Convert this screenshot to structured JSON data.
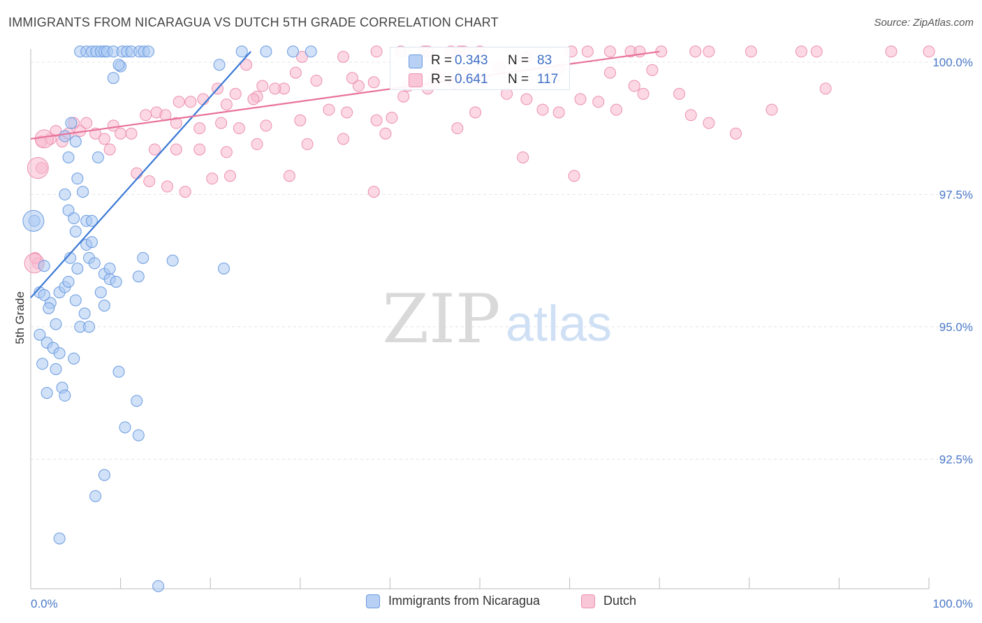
{
  "title": "IMMIGRANTS FROM NICARAGUA VS DUTCH 5TH GRADE CORRELATION CHART",
  "source": "Source: ZipAtlas.com",
  "watermark": {
    "zip": "ZIP",
    "atlas": "atlas"
  },
  "colors": {
    "blue_fill": "#a9c8f3",
    "blue_stroke": "#6b9be0",
    "blue_line": "#3a78d4",
    "pink_fill": "#f7b8cd",
    "pink_stroke": "#ec8fb0",
    "pink_line": "#e8729a",
    "grid": "#e3e3e3",
    "tick_text": "#4a78c8"
  },
  "legend_stats": [
    {
      "r_label": "R = ",
      "r_value": "0.343",
      "n_label": "N = ",
      "n_value": "83",
      "series": "blue"
    },
    {
      "r_label": "R = ",
      "r_value": "0.641",
      "n_label": "N = ",
      "n_value": "117",
      "series": "pink"
    }
  ],
  "legend_bottom": [
    {
      "label": "Immigrants from Nicaragua",
      "series": "blue"
    },
    {
      "label": "Dutch",
      "series": "pink"
    }
  ],
  "chart_data": {
    "type": "scatter",
    "title": "IMMIGRANTS FROM NICARAGUA VS DUTCH 5TH GRADE CORRELATION CHART",
    "xlabel": "",
    "ylabel": "5th Grade",
    "xlim": [
      0,
      100
    ],
    "ylim": [
      90.05,
      100.25
    ],
    "x_tick_labels": [
      {
        "value": 0,
        "label": "0.0%"
      },
      {
        "value": 100,
        "label": "100.0%"
      }
    ],
    "y_ticks": [
      {
        "value": 92.5,
        "label": "92.5%"
      },
      {
        "value": 95.0,
        "label": "95.0%"
      },
      {
        "value": 97.5,
        "label": "97.5%"
      },
      {
        "value": 100.0,
        "label": "100.0%"
      }
    ],
    "series": [
      {
        "name": "Immigrants from Nicaragua",
        "color": "blue",
        "R": 0.343,
        "N": 83,
        "trend": {
          "x0": 0.0,
          "y0": 95.55,
          "x1": 24.5,
          "y1": 100.2
        },
        "points": [
          [
            5.5,
            100.2
          ],
          [
            6.2,
            100.2
          ],
          [
            6.8,
            100.2
          ],
          [
            7.3,
            100.2
          ],
          [
            7.8,
            100.2
          ],
          [
            8.2,
            100.2
          ],
          [
            8.5,
            100.2
          ],
          [
            9.2,
            100.2
          ],
          [
            10.2,
            100.2
          ],
          [
            10.7,
            100.2
          ],
          [
            11.2,
            100.2
          ],
          [
            12.1,
            100.2
          ],
          [
            12.6,
            100.2
          ],
          [
            13.1,
            100.2
          ],
          [
            23.5,
            100.2
          ],
          [
            26.2,
            100.2
          ],
          [
            29.2,
            100.2
          ],
          [
            31.2,
            100.2
          ],
          [
            10.0,
            99.92
          ],
          [
            9.8,
            99.95
          ],
          [
            21.0,
            99.95
          ],
          [
            9.2,
            99.7
          ],
          [
            4.5,
            98.85
          ],
          [
            5.0,
            98.5
          ],
          [
            3.8,
            98.6
          ],
          [
            4.2,
            98.2
          ],
          [
            7.5,
            98.2
          ],
          [
            5.2,
            97.8
          ],
          [
            5.8,
            97.55
          ],
          [
            3.8,
            97.5
          ],
          [
            4.2,
            97.2
          ],
          [
            4.8,
            97.05
          ],
          [
            6.2,
            97.0
          ],
          [
            6.8,
            97.0
          ],
          [
            5.0,
            96.8
          ],
          [
            6.2,
            96.55
          ],
          [
            6.8,
            96.6
          ],
          [
            0.4,
            97.0
          ],
          [
            4.4,
            96.3
          ],
          [
            5.2,
            96.1
          ],
          [
            6.5,
            96.3
          ],
          [
            7.1,
            96.2
          ],
          [
            8.2,
            96.0
          ],
          [
            8.8,
            95.9
          ],
          [
            9.5,
            95.85
          ],
          [
            12.5,
            96.3
          ],
          [
            15.8,
            96.25
          ],
          [
            21.5,
            96.1
          ],
          [
            12.0,
            95.95
          ],
          [
            1.0,
            95.65
          ],
          [
            2.2,
            95.45
          ],
          [
            3.2,
            95.65
          ],
          [
            3.8,
            95.75
          ],
          [
            4.2,
            95.85
          ],
          [
            5.0,
            95.5
          ],
          [
            6.0,
            95.25
          ],
          [
            5.5,
            95.0
          ],
          [
            6.5,
            95.0
          ],
          [
            7.8,
            95.65
          ],
          [
            8.2,
            95.4
          ],
          [
            1.5,
            95.6
          ],
          [
            2.0,
            95.35
          ],
          [
            2.8,
            95.05
          ],
          [
            1.0,
            94.85
          ],
          [
            1.8,
            94.7
          ],
          [
            2.5,
            94.6
          ],
          [
            3.2,
            94.5
          ],
          [
            4.8,
            94.4
          ],
          [
            1.3,
            94.3
          ],
          [
            2.8,
            94.2
          ],
          [
            9.8,
            94.15
          ],
          [
            1.8,
            93.75
          ],
          [
            3.5,
            93.85
          ],
          [
            3.8,
            93.7
          ],
          [
            11.8,
            93.6
          ],
          [
            10.5,
            93.1
          ],
          [
            12.0,
            92.95
          ],
          [
            8.2,
            92.2
          ],
          [
            3.2,
            91.0
          ],
          [
            14.2,
            90.1
          ],
          [
            7.2,
            91.8
          ],
          [
            1.5,
            96.15
          ],
          [
            8.8,
            96.1
          ]
        ]
      },
      {
        "name": "Dutch",
        "color": "pink",
        "R": 0.641,
        "N": 117,
        "trend": {
          "x0": 0.0,
          "y0": 98.55,
          "x1": 70.0,
          "y1": 100.2
        },
        "points": [
          [
            24.0,
            99.95
          ],
          [
            30.2,
            100.1
          ],
          [
            34.8,
            100.1
          ],
          [
            41.2,
            100.2
          ],
          [
            43.8,
            100.2
          ],
          [
            46.8,
            100.2
          ],
          [
            48.2,
            100.2
          ],
          [
            50.0,
            100.2
          ],
          [
            55.2,
            100.1
          ],
          [
            60.2,
            100.2
          ],
          [
            64.5,
            100.2
          ],
          [
            66.8,
            100.2
          ],
          [
            67.8,
            100.2
          ],
          [
            70.2,
            100.2
          ],
          [
            74.0,
            100.2
          ],
          [
            80.2,
            100.2
          ],
          [
            85.8,
            100.2
          ],
          [
            87.5,
            100.2
          ],
          [
            95.8,
            100.2
          ],
          [
            100.0,
            100.2
          ],
          [
            38.5,
            100.2
          ],
          [
            44.2,
            100.2
          ],
          [
            47.8,
            100.2
          ],
          [
            62.0,
            100.2
          ],
          [
            75.5,
            100.2
          ],
          [
            69.2,
            99.85
          ],
          [
            64.5,
            99.8
          ],
          [
            57.5,
            99.75
          ],
          [
            58.8,
            99.85
          ],
          [
            52.2,
            99.9
          ],
          [
            48.2,
            99.8
          ],
          [
            45.2,
            99.75
          ],
          [
            44.8,
            99.6
          ],
          [
            42.0,
            99.55
          ],
          [
            38.2,
            99.62
          ],
          [
            36.5,
            99.55
          ],
          [
            35.8,
            99.7
          ],
          [
            31.8,
            99.65
          ],
          [
            29.5,
            99.8
          ],
          [
            28.2,
            99.5
          ],
          [
            27.2,
            99.5
          ],
          [
            25.8,
            99.55
          ],
          [
            25.2,
            99.35
          ],
          [
            24.8,
            99.3
          ],
          [
            22.8,
            99.4
          ],
          [
            21.8,
            99.2
          ],
          [
            20.8,
            99.5
          ],
          [
            19.2,
            99.3
          ],
          [
            17.8,
            99.25
          ],
          [
            16.5,
            99.25
          ],
          [
            12.8,
            99.0
          ],
          [
            14.0,
            99.05
          ],
          [
            15.0,
            99.0
          ],
          [
            16.2,
            98.85
          ],
          [
            18.8,
            98.75
          ],
          [
            21.2,
            98.85
          ],
          [
            23.2,
            98.75
          ],
          [
            26.2,
            98.8
          ],
          [
            30.0,
            98.9
          ],
          [
            33.2,
            99.1
          ],
          [
            35.2,
            99.05
          ],
          [
            38.5,
            98.9
          ],
          [
            40.2,
            98.95
          ],
          [
            41.5,
            99.35
          ],
          [
            44.2,
            99.5
          ],
          [
            47.2,
            99.6
          ],
          [
            50.2,
            99.65
          ],
          [
            53.0,
            99.4
          ],
          [
            55.2,
            99.3
          ],
          [
            57.0,
            99.1
          ],
          [
            58.8,
            99.05
          ],
          [
            61.2,
            99.3
          ],
          [
            63.2,
            99.25
          ],
          [
            65.2,
            99.1
          ],
          [
            67.2,
            99.55
          ],
          [
            68.2,
            99.4
          ],
          [
            72.2,
            99.4
          ],
          [
            73.5,
            99.0
          ],
          [
            75.5,
            98.85
          ],
          [
            78.5,
            98.65
          ],
          [
            82.5,
            99.1
          ],
          [
            88.5,
            99.5
          ],
          [
            1.2,
            98.5
          ],
          [
            2.2,
            98.55
          ],
          [
            2.8,
            98.7
          ],
          [
            3.5,
            98.5
          ],
          [
            4.2,
            98.65
          ],
          [
            4.8,
            98.85
          ],
          [
            5.5,
            98.7
          ],
          [
            6.2,
            98.85
          ],
          [
            7.2,
            98.65
          ],
          [
            8.2,
            98.55
          ],
          [
            9.2,
            98.8
          ],
          [
            10.0,
            98.65
          ],
          [
            8.8,
            98.35
          ],
          [
            11.2,
            98.65
          ],
          [
            13.8,
            98.35
          ],
          [
            16.2,
            98.35
          ],
          [
            18.8,
            98.35
          ],
          [
            21.8,
            98.3
          ],
          [
            25.2,
            98.45
          ],
          [
            30.8,
            98.45
          ],
          [
            34.8,
            98.55
          ],
          [
            39.5,
            98.65
          ],
          [
            47.5,
            98.75
          ],
          [
            1.2,
            98.0
          ],
          [
            11.8,
            97.9
          ],
          [
            13.2,
            97.75
          ],
          [
            15.2,
            97.65
          ],
          [
            17.2,
            97.55
          ],
          [
            20.2,
            97.8
          ],
          [
            22.2,
            97.85
          ],
          [
            28.8,
            97.85
          ],
          [
            38.2,
            97.55
          ],
          [
            60.5,
            97.85
          ],
          [
            0.8,
            96.2
          ],
          [
            0.5,
            96.3
          ],
          [
            49.5,
            99.05
          ],
          [
            54.8,
            98.2
          ]
        ]
      }
    ]
  }
}
